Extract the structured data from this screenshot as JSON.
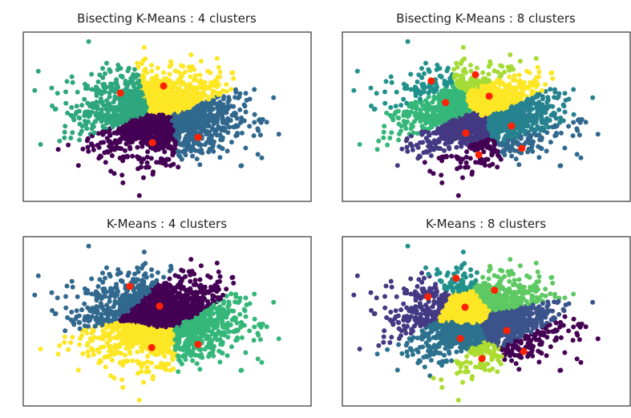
{
  "chart_data": [
    {
      "type": "scatter",
      "title": "Bisecting K-Means : 4 clusters",
      "xlim": [
        -4,
        4
      ],
      "ylim": [
        -3,
        3
      ],
      "grid": false,
      "axes_ticks": false,
      "centroid_color": "#ff2200",
      "clusters": [
        {
          "center": [
            -1.3,
            0.84
          ],
          "color": "#2ea67e"
        },
        {
          "center": [
            -0.1,
            1.09
          ],
          "color": "#fde725"
        },
        {
          "center": [
            -0.41,
            -0.92
          ],
          "color": "#440154"
        },
        {
          "center": [
            0.86,
            -0.73
          ],
          "color": "#31688e"
        }
      ]
    },
    {
      "type": "scatter",
      "title": "Bisecting K-Means : 8 clusters",
      "xlim": [
        -4,
        4
      ],
      "ylim": [
        -3,
        3
      ],
      "grid": false,
      "axes_ticks": false,
      "centroid_color": "#ff2200",
      "clusters": [
        {
          "center": [
            -1.53,
            1.27
          ],
          "color": "#21918c"
        },
        {
          "center": [
            -0.3,
            1.49
          ],
          "color": "#a5db36"
        },
        {
          "center": [
            -1.13,
            0.5
          ],
          "color": "#35b779"
        },
        {
          "center": [
            0.08,
            0.73
          ],
          "color": "#fde725"
        },
        {
          "center": [
            -0.57,
            -0.58
          ],
          "color": "#443983"
        },
        {
          "center": [
            0.7,
            -0.33
          ],
          "color": "#26828e"
        },
        {
          "center": [
            -0.21,
            -1.35
          ],
          "color": "#440154"
        },
        {
          "center": [
            0.99,
            -1.12
          ],
          "color": "#31688e"
        }
      ]
    },
    {
      "type": "scatter",
      "title": "K-Means : 4 clusters",
      "xlim": [
        -4,
        4
      ],
      "ylim": [
        -3,
        3
      ],
      "grid": false,
      "axes_ticks": false,
      "centroid_color": "#ff2200",
      "clusters": [
        {
          "center": [
            -1.04,
            1.24
          ],
          "color": "#31688e"
        },
        {
          "center": [
            -0.21,
            0.54
          ],
          "color": "#440154"
        },
        {
          "center": [
            -0.43,
            -0.93
          ],
          "color": "#fde725"
        },
        {
          "center": [
            0.86,
            -0.82
          ],
          "color": "#35b779"
        }
      ]
    },
    {
      "type": "scatter",
      "title": "K-Means : 8 clusters",
      "xlim": [
        -4,
        4
      ],
      "ylim": [
        -3,
        3
      ],
      "grid": false,
      "axes_ticks": false,
      "centroid_color": "#ff2200",
      "clusters": [
        {
          "center": [
            -0.84,
            1.53
          ],
          "color": "#21918c"
        },
        {
          "center": [
            0.23,
            1.1
          ],
          "color": "#5ec962"
        },
        {
          "center": [
            -1.62,
            0.87
          ],
          "color": "#443983"
        },
        {
          "center": [
            -0.59,
            0.5
          ],
          "color": "#fde725"
        },
        {
          "center": [
            0.57,
            -0.33
          ],
          "color": "#3b528b"
        },
        {
          "center": [
            -0.72,
            -0.61
          ],
          "color": "#2c728e"
        },
        {
          "center": [
            1.04,
            -1.07
          ],
          "color": "#440154"
        },
        {
          "center": [
            -0.12,
            -1.32
          ],
          "color": "#addc30"
        }
      ]
    }
  ]
}
